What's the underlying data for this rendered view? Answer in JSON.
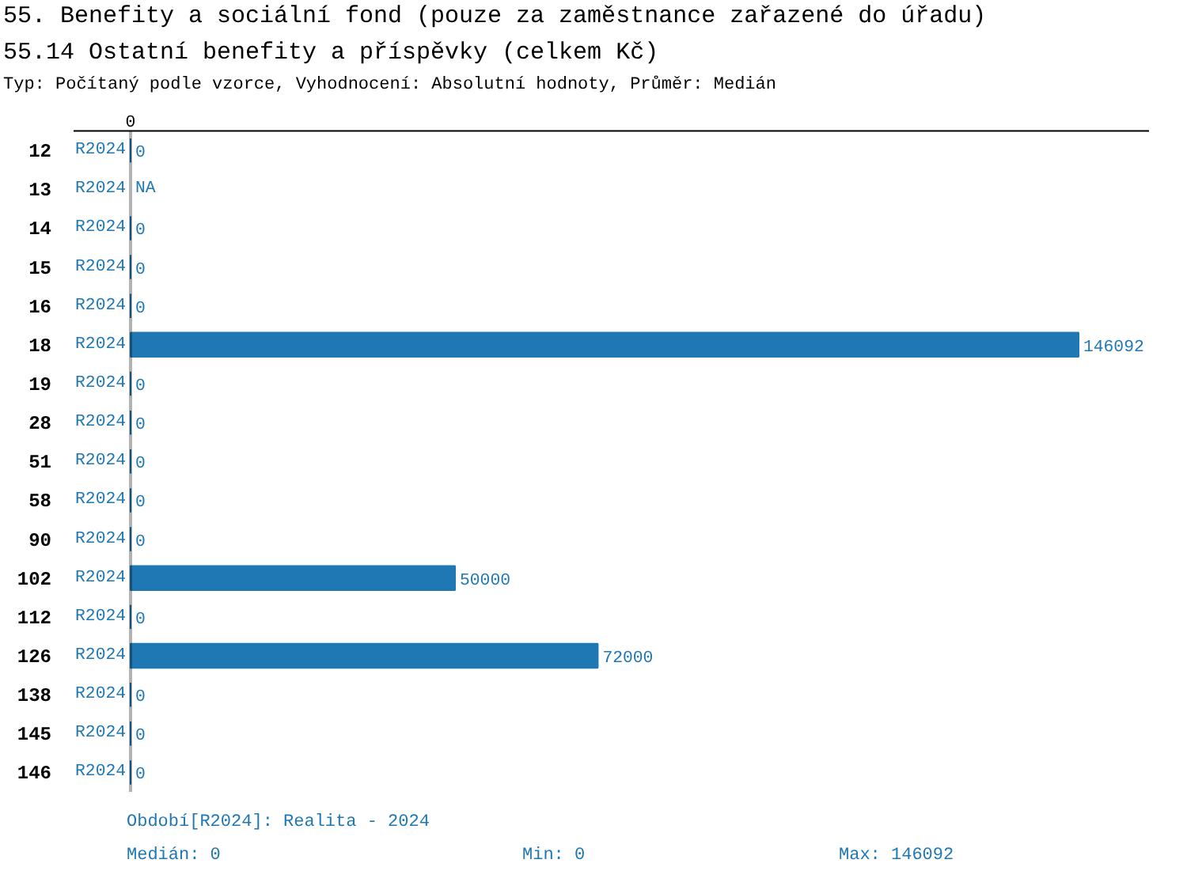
{
  "chart_data": {
    "type": "bar",
    "orientation": "horizontal",
    "title": "55. Benefity a sociální fond (pouze za zaměstnance zařazené do úřadu)",
    "subtitle": "55.14 Ostatní benefity a příspěvky (celkem Kč)",
    "annotations": [
      "Typ: Počítaný podle vzorce, Vyhodnocení: Absolutní hodnoty, Průměr: Medián",
      "0",
      "Období[R2024]: Realita - 2024",
      "Medián: 0",
      "Min: 0",
      "Max: 146092"
    ],
    "categories": [
      "12",
      "13",
      "14",
      "15",
      "16",
      "18",
      "19",
      "28",
      "51",
      "58",
      "90",
      "102",
      "112",
      "126",
      "138",
      "145",
      "146"
    ],
    "series": [
      {
        "name": "R2024",
        "color": "#1f77b4",
        "values": [
          0,
          null,
          0,
          0,
          0,
          146092,
          0,
          0,
          0,
          0,
          0,
          50000,
          0,
          72000,
          0,
          0,
          0
        ],
        "value_labels": [
          "0",
          "NA",
          "0",
          "0",
          "0",
          "146092",
          "0",
          "0",
          "0",
          "0",
          "0",
          "50000",
          "0",
          "72000",
          "0",
          "0",
          "0"
        ]
      }
    ],
    "grid": false
  }
}
